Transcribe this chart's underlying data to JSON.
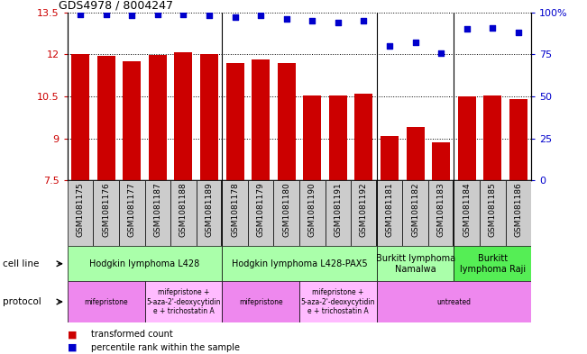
{
  "title": "GDS4978 / 8004247",
  "samples": [
    "GSM1081175",
    "GSM1081176",
    "GSM1081177",
    "GSM1081187",
    "GSM1081188",
    "GSM1081189",
    "GSM1081178",
    "GSM1081179",
    "GSM1081180",
    "GSM1081190",
    "GSM1081191",
    "GSM1081192",
    "GSM1081181",
    "GSM1081182",
    "GSM1081183",
    "GSM1081184",
    "GSM1081185",
    "GSM1081186"
  ],
  "bar_values": [
    12.0,
    11.95,
    11.75,
    11.98,
    12.08,
    12.0,
    11.7,
    11.82,
    11.7,
    10.55,
    10.55,
    10.6,
    9.1,
    9.4,
    8.85,
    10.5,
    10.55,
    10.4
  ],
  "dot_values": [
    99,
    99,
    98,
    99,
    99,
    98,
    97,
    98,
    96,
    95,
    94,
    95,
    80,
    82,
    76,
    90,
    91,
    88
  ],
  "ylim_left": [
    7.5,
    13.5
  ],
  "ylim_right": [
    0,
    100
  ],
  "yticks_left": [
    7.5,
    9.0,
    10.5,
    12.0,
    13.5
  ],
  "yticks_right": [
    0,
    25,
    50,
    75,
    100
  ],
  "ytick_labels_left": [
    "7.5",
    "9",
    "10.5",
    "12",
    "13.5"
  ],
  "ytick_labels_right": [
    "0",
    "25",
    "50",
    "75",
    "100%"
  ],
  "bar_color": "#cc0000",
  "dot_color": "#0000cc",
  "cell_line_groups": [
    {
      "label": "Hodgkin lymphoma L428",
      "start": 0,
      "end": 6,
      "color": "#aaffaa"
    },
    {
      "label": "Hodgkin lymphoma L428-PAX5",
      "start": 6,
      "end": 12,
      "color": "#aaffaa"
    },
    {
      "label": "Burkitt lymphoma\nNamalwa",
      "start": 12,
      "end": 15,
      "color": "#aaffaa"
    },
    {
      "label": "Burkitt\nlymphoma Raji",
      "start": 15,
      "end": 18,
      "color": "#55ee55"
    }
  ],
  "protocol_groups": [
    {
      "label": "mifepristone",
      "start": 0,
      "end": 3,
      "color": "#ee88ee"
    },
    {
      "label": "mifepristone +\n5-aza-2'-deoxycytidin\ne + trichostatin A",
      "start": 3,
      "end": 6,
      "color": "#ffbbff"
    },
    {
      "label": "mifepristone",
      "start": 6,
      "end": 9,
      "color": "#ee88ee"
    },
    {
      "label": "mifepristone +\n5-aza-2'-deoxycytidin\ne + trichostatin A",
      "start": 9,
      "end": 12,
      "color": "#ffbbff"
    },
    {
      "label": "untreated",
      "start": 12,
      "end": 18,
      "color": "#ee88ee"
    }
  ],
  "cell_line_label": "cell line",
  "protocol_label": "protocol",
  "legend_bar": "transformed count",
  "legend_dot": "percentile rank within the sample",
  "grid_color": "#888888",
  "bg_color": "#ffffff",
  "sample_bg_color": "#cccccc",
  "group_boundaries": [
    6,
    12,
    15
  ]
}
